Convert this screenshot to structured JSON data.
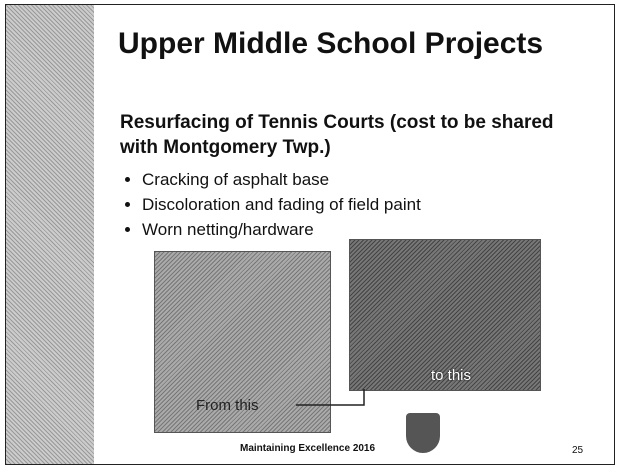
{
  "title": "Upper Middle School Projects",
  "heading": "Resurfacing of Tennis Courts (cost to be shared with Montgomery Twp.)",
  "bullets": [
    "Cracking of asphalt base",
    "Discoloration and fading of field paint",
    "Worn netting/hardware"
  ],
  "captions": [
    "From this",
    "to this"
  ],
  "footer": "Maintaining Excellence 2016",
  "page_number": "25"
}
